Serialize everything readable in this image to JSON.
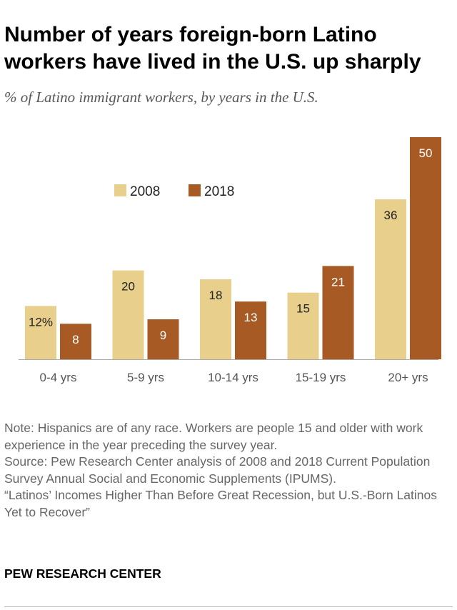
{
  "header": {
    "title": "Number of years foreign-born Latino\nworkers have lived in the U.S. up sharply",
    "subtitle": "% of Latino immigrant workers, by years in the U.S."
  },
  "chart_data": {
    "type": "bar",
    "title": "Number of years foreign-born Latino workers have lived in the U.S. up sharply",
    "subtitle": "% of Latino immigrant workers, by years in the U.S.",
    "categories": [
      "0-4 yrs",
      "5-9 yrs",
      "10-14 yrs",
      "15-19 yrs",
      "20+ yrs"
    ],
    "series": [
      {
        "name": "2008",
        "values": [
          12,
          20,
          18,
          15,
          36
        ],
        "color": "#E8CF8C",
        "label_color": "#222222"
      },
      {
        "name": "2018",
        "values": [
          8,
          9,
          13,
          21,
          50
        ],
        "color": "#A85A24",
        "label_color": "#FFFFFF"
      }
    ],
    "data_labels": [
      [
        "12%",
        "20",
        "18",
        "15",
        "36"
      ],
      [
        "8",
        "9",
        "13",
        "21",
        "50"
      ]
    ],
    "xlabel": "",
    "ylabel": "",
    "ylim": [
      0,
      50
    ],
    "grid": false,
    "legend": "top-left"
  },
  "footer": {
    "note": "Note: Hispanics are of any race. Workers are people 15 and older with work experience in the year preceding the survey year.",
    "source": "Source: Pew Research Center analysis of 2008 and 2018 Current Population Survey Annual Social and Economic Supplements (IPUMS).",
    "report": "“Latinos’ Incomes Higher Than Before Great Recession, but U.S.-Born Latinos Yet to Recover”",
    "brand": "PEW RESEARCH CENTER"
  }
}
